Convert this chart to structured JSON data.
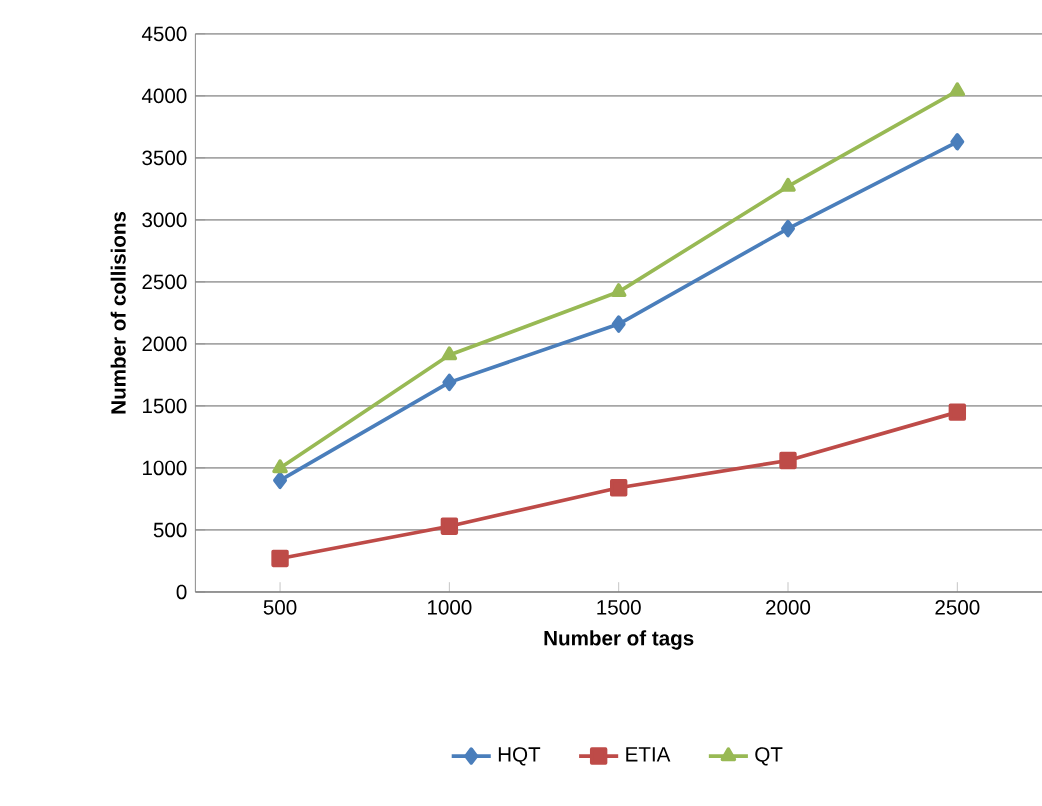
{
  "chart_data": {
    "type": "line",
    "xlabel": "Number of tags",
    "ylabel": "Number of collisions",
    "categories": [
      "500",
      "1000",
      "1500",
      "2000",
      "2500"
    ],
    "series": [
      {
        "name": "HQT",
        "color": "#4a7ebb",
        "marker": "diamond",
        "values": [
          900,
          1690,
          2160,
          2930,
          3630
        ]
      },
      {
        "name": "ETIA",
        "color": "#be4b48",
        "marker": "square",
        "values": [
          270,
          530,
          840,
          1060,
          1450
        ]
      },
      {
        "name": "QT",
        "color": "#98b954",
        "marker": "triangle",
        "values": [
          1000,
          1910,
          2420,
          3270,
          4040
        ]
      }
    ],
    "ylim": [
      0,
      4500
    ],
    "yticks": [
      0,
      500,
      1000,
      1500,
      2000,
      2500,
      3000,
      3500,
      4000,
      4500
    ],
    "grid": "y",
    "legend": "bottom",
    "line_style": "solid"
  }
}
